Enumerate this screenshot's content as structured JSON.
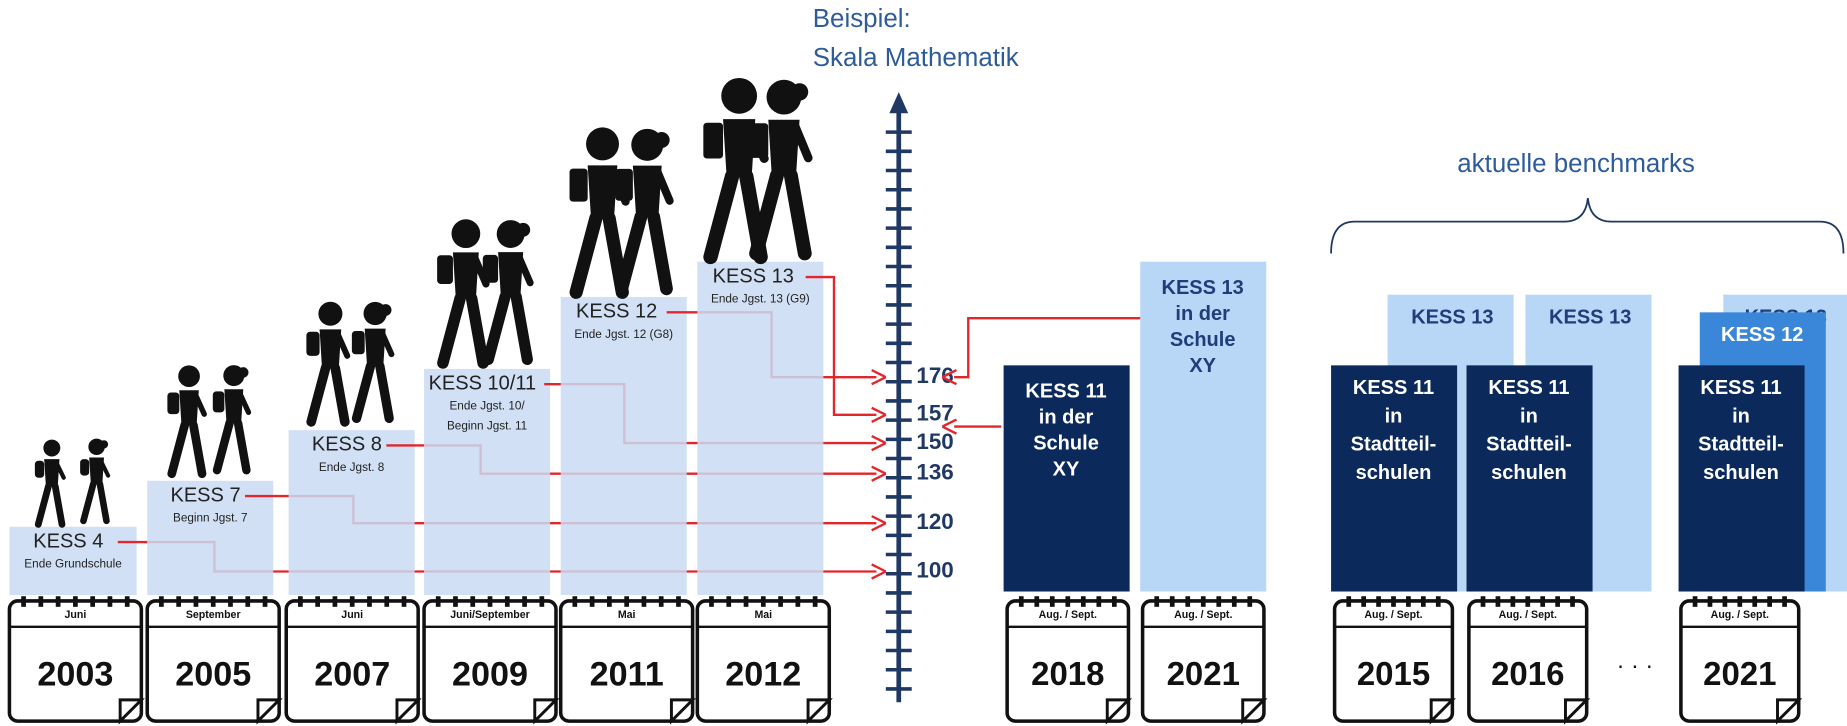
{
  "scale": {
    "title": [
      "Beispiel:",
      "Skala Mathematik"
    ],
    "values": [
      176,
      157,
      150,
      136,
      120,
      100
    ]
  },
  "studies": [
    {
      "label": "KESS 4",
      "subtitle": [
        "Ende Grundschule"
      ],
      "month": "Juni",
      "year": "2003"
    },
    {
      "label": "KESS 7",
      "subtitle": [
        "Beginn Jgst. 7"
      ],
      "month": "September",
      "year": "2005"
    },
    {
      "label": "KESS 8",
      "subtitle": [
        "Ende Jgst. 8"
      ],
      "month": "Juni",
      "year": "2007"
    },
    {
      "label": "KESS 10/11",
      "subtitle": [
        "Ende Jgst. 10/",
        "Beginn Jgst. 11"
      ],
      "month": "Juni/September",
      "year": "2009"
    },
    {
      "label": "KESS 12",
      "subtitle": [
        "Ende Jgst. 12 (G8)"
      ],
      "month": "Mai",
      "year": "2011"
    },
    {
      "label": "KESS 13",
      "subtitle": [
        "Ende Jgst. 13 (G9)"
      ],
      "month": "Mai",
      "year": "2012"
    }
  ],
  "school": {
    "columns": [
      {
        "label": [
          "KESS 11",
          "in der",
          "Schule",
          "XY"
        ],
        "date": "Aug. / Sept.",
        "year": "2018"
      },
      {
        "label": [
          "KESS 13",
          "in der",
          "Schule",
          "XY"
        ],
        "date": "Aug. / Sept.",
        "year": "2021"
      }
    ]
  },
  "benchmarks": {
    "title": "aktuelle benchmarks",
    "ellipsis": "· · ·",
    "columns": [
      {
        "date": "Aug. / Sept.",
        "year": "2015",
        "bars": [
          {
            "label": [
              "KESS 13"
            ]
          },
          {
            "label": [
              "KESS 11",
              "in",
              "Stadtteil-",
              "schulen"
            ]
          }
        ]
      },
      {
        "date": "Aug. / Sept.",
        "year": "2016",
        "bars": [
          {
            "label": [
              "KESS 13"
            ]
          },
          {
            "label": [
              "KESS 11",
              "in",
              "Stadtteil-",
              "schulen"
            ]
          }
        ]
      },
      {
        "date": "Aug. / Sept.",
        "year": "2021",
        "bars": [
          {
            "label": [
              "KESS 13"
            ]
          },
          {
            "label": [
              "KESS 12"
            ]
          },
          {
            "label": [
              "KESS 11",
              "in",
              "Stadtteil-",
              "schulen"
            ]
          }
        ]
      }
    ]
  }
}
